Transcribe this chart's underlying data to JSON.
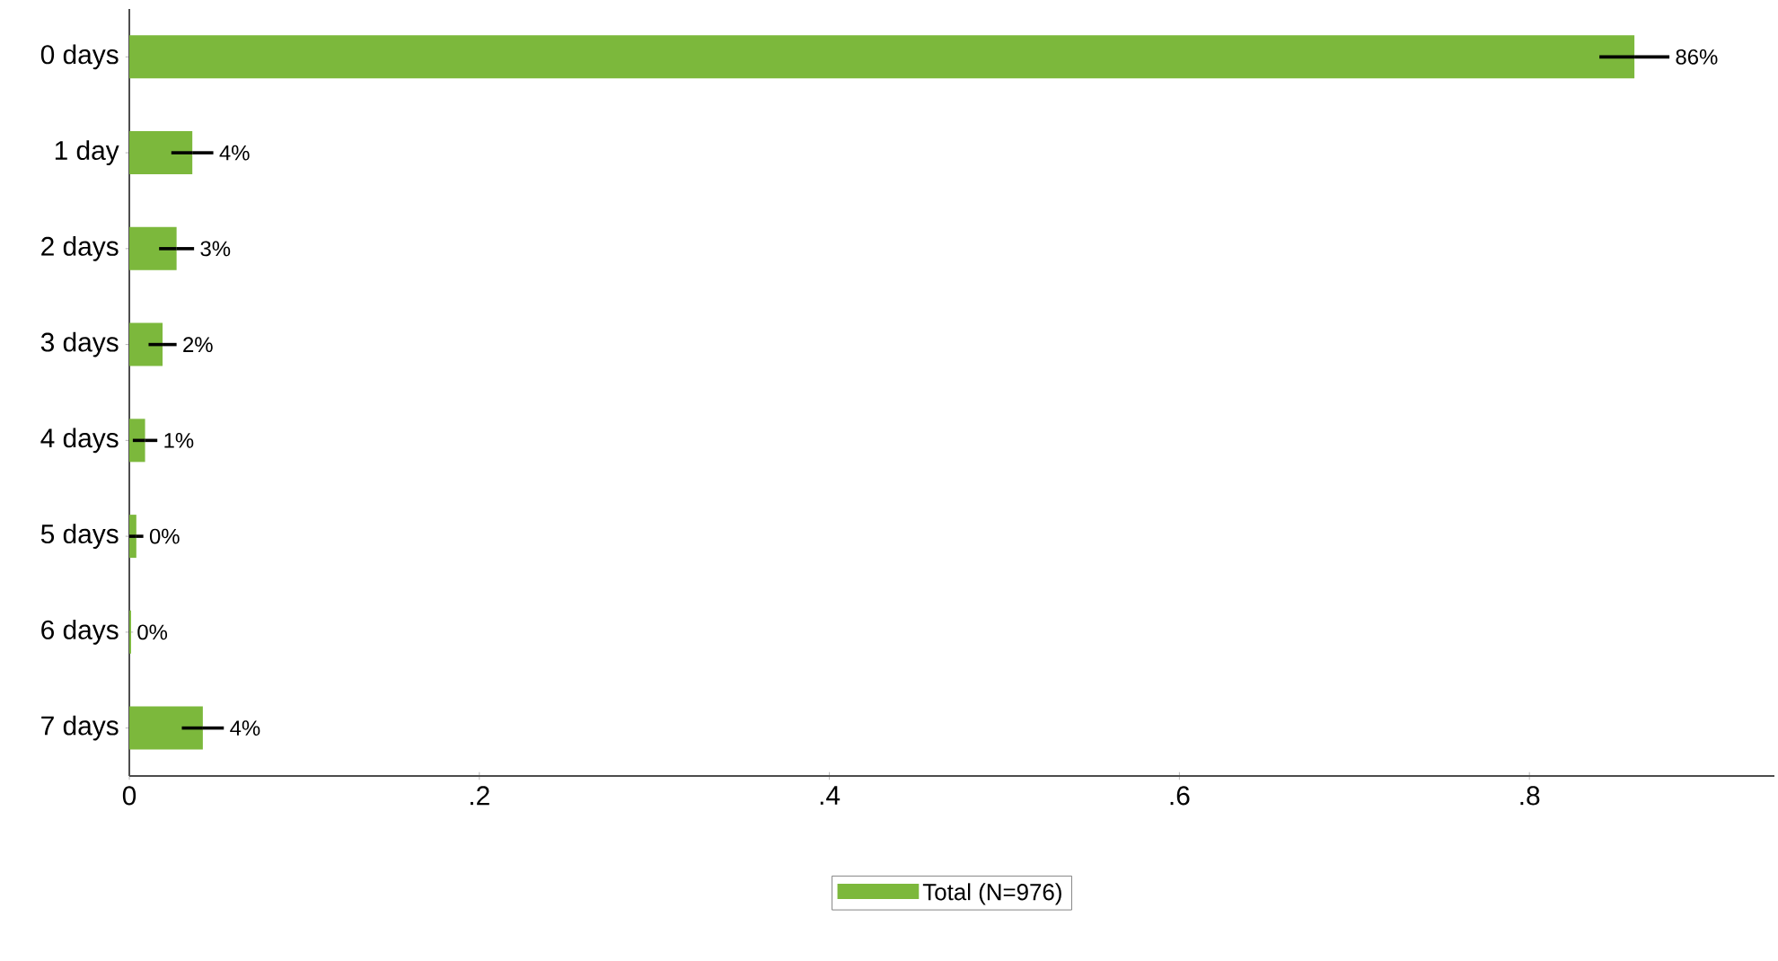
{
  "chart_data": {
    "type": "bar",
    "orientation": "horizontal",
    "categories": [
      "0 days",
      "1 day",
      "2 days",
      "3 days",
      "4 days",
      "5 days",
      "6 days",
      "7 days"
    ],
    "series": [
      {
        "name": "Total (N=976)",
        "color": "#7cb83c",
        "values": [
          0.86,
          0.036,
          0.027,
          0.019,
          0.009,
          0.004,
          0.001,
          0.042
        ],
        "errors": [
          0.02,
          0.012,
          0.01,
          0.008,
          0.007,
          0.004,
          null,
          0.012
        ],
        "value_labels": [
          "86%",
          "4%",
          "3%",
          "2%",
          "1%",
          "0%",
          "0%",
          "4%"
        ]
      }
    ],
    "xlim": [
      0,
      0.94
    ],
    "xticks": [
      0,
      {
        "value": 0.2,
        "label": ".2"
      },
      {
        "value": 0.4,
        "label": ".4"
      },
      {
        "value": 0.6,
        "label": ".6"
      },
      {
        "value": 0.8,
        "label": ".8"
      }
    ],
    "legend": "bottom",
    "grid": false
  }
}
